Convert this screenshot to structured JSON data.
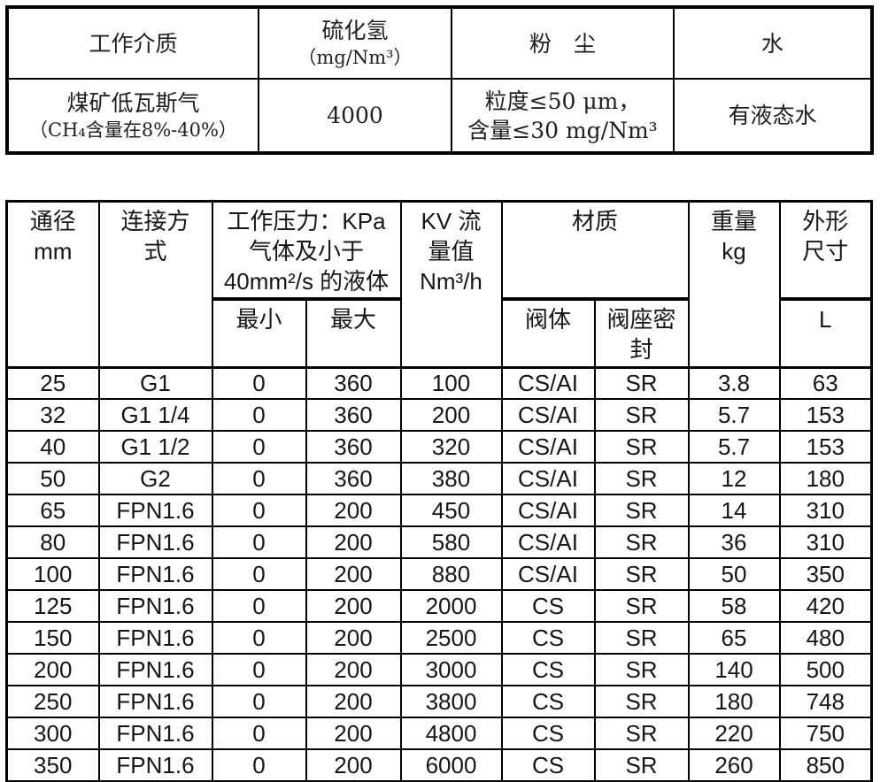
{
  "media_table": {
    "col_medium": {
      "header": "工作介质",
      "value_line1": "煤矿低瓦斯气",
      "value_line2": "（CH₄含量在8%-40%）"
    },
    "col_h2s": {
      "header_line1": "硫化氢",
      "header_line2": "（mg/Nm³）",
      "value": "4000"
    },
    "col_dust": {
      "header": "粉　尘",
      "value_line1": "粒度≤50 μm，",
      "value_line2": "含量≤30 mg/Nm³"
    },
    "col_water": {
      "header": "水",
      "value": "有液态水"
    }
  },
  "spec_table": {
    "header": {
      "col_dn": "通径\nmm",
      "col_connection": "连接方\n式",
      "group_pressure": "工作压力：KPa\n气体及小于\n40mm²/s 的液体",
      "sub_min": "最小",
      "sub_max": "最大",
      "col_kv": "KV 流\n量值\nNm³/h",
      "group_material": "材质",
      "sub_body": "阀体",
      "sub_seat": "阀座密\n封",
      "col_weight": "重量\nkg",
      "group_dimension": "外形\n尺寸",
      "sub_length": "L"
    },
    "rows": [
      [
        "25",
        "G1",
        "0",
        "360",
        "100",
        "CS/AI",
        "SR",
        "3.8",
        "63"
      ],
      [
        "32",
        "G1 1/4",
        "0",
        "360",
        "200",
        "CS/AI",
        "SR",
        "5.7",
        "153"
      ],
      [
        "40",
        "G1 1/2",
        "0",
        "360",
        "320",
        "CS/AI",
        "SR",
        "5.7",
        "153"
      ],
      [
        "50",
        "G2",
        "0",
        "360",
        "380",
        "CS/AI",
        "SR",
        "12",
        "180"
      ],
      [
        "65",
        "FPN1.6",
        "0",
        "200",
        "450",
        "CS/AI",
        "SR",
        "14",
        "310"
      ],
      [
        "80",
        "FPN1.6",
        "0",
        "200",
        "580",
        "CS/AI",
        "SR",
        "36",
        "310"
      ],
      [
        "100",
        "FPN1.6",
        "0",
        "200",
        "880",
        "CS/AI",
        "SR",
        "50",
        "350"
      ],
      [
        "125",
        "FPN1.6",
        "0",
        "200",
        "2000",
        "CS",
        "SR",
        "58",
        "420"
      ],
      [
        "150",
        "FPN1.6",
        "0",
        "200",
        "2500",
        "CS",
        "SR",
        "65",
        "480"
      ],
      [
        "200",
        "FPN1.6",
        "0",
        "200",
        "3000",
        "CS",
        "SR",
        "140",
        "500"
      ],
      [
        "250",
        "FPN1.6",
        "0",
        "200",
        "3800",
        "CS",
        "SR",
        "180",
        "748"
      ],
      [
        "300",
        "FPN1.6",
        "0",
        "200",
        "4800",
        "CS",
        "SR",
        "220",
        "750"
      ],
      [
        "350",
        "FPN1.6",
        "0",
        "200",
        "6000",
        "CS",
        "SR",
        "260",
        "850"
      ]
    ]
  },
  "colors": {
    "border": "#000000",
    "text": "#1b1b1b",
    "background": "#ffffff"
  }
}
